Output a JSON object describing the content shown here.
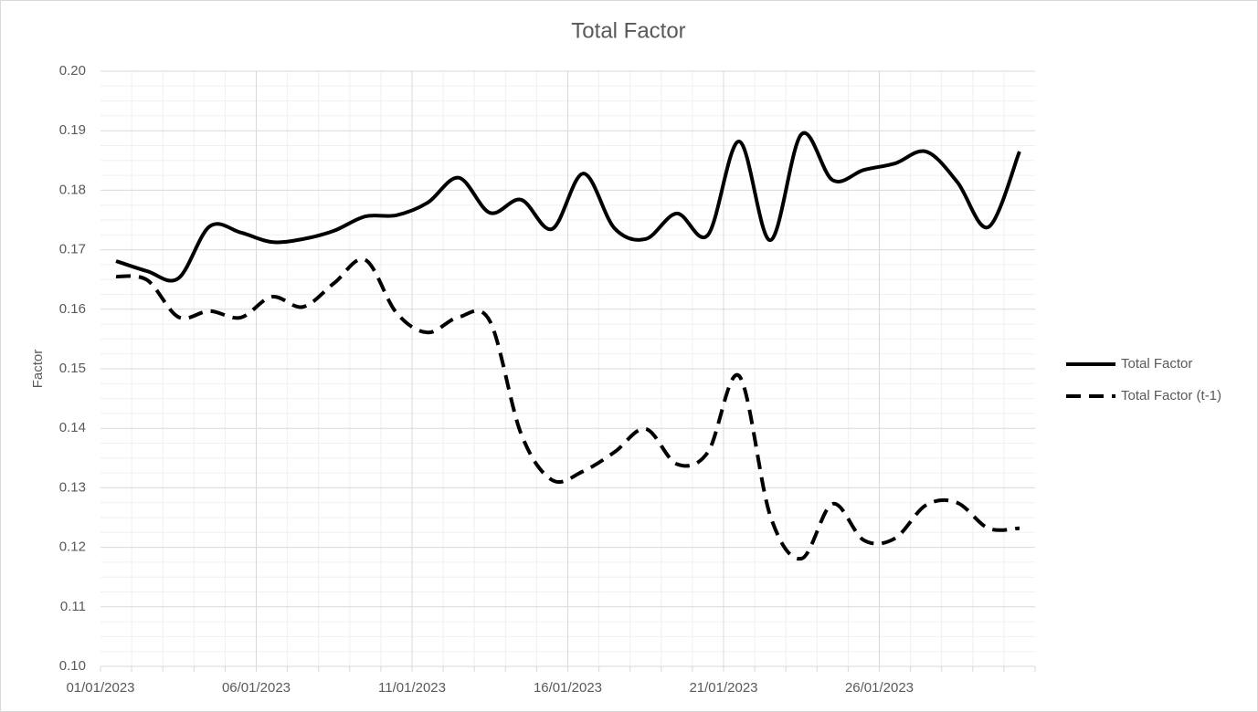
{
  "chart_data": {
    "type": "line",
    "title": "Total Factor",
    "y_label": "Factor",
    "categories": [
      "01/01/2023",
      null,
      null,
      null,
      null,
      "06/01/2023",
      null,
      null,
      null,
      null,
      "11/01/2023",
      null,
      null,
      null,
      null,
      "16/01/2023",
      null,
      null,
      null,
      null,
      "21/01/2023",
      null,
      null,
      null,
      null,
      "26/01/2023",
      null,
      null,
      null,
      null
    ],
    "series": [
      {
        "name": "Total Factor",
        "color": "#000000",
        "dash": false,
        "values": [
          0.1681,
          0.1664,
          0.1652,
          0.1739,
          0.1729,
          0.1713,
          0.1718,
          0.1732,
          0.1756,
          0.1758,
          0.1779,
          0.1821,
          0.1762,
          0.1784,
          0.1735,
          0.1828,
          0.1736,
          0.1718,
          0.1761,
          0.1725,
          0.1882,
          0.1716,
          0.1894,
          0.1817,
          0.1834,
          0.1845,
          0.1865,
          0.1814,
          0.1738,
          0.1865
        ]
      },
      {
        "name": "Total Factor (t-1)",
        "color": "#000000",
        "dash": true,
        "values": [
          0.1655,
          0.1649,
          0.1587,
          0.1597,
          0.1586,
          0.1621,
          0.1604,
          0.1644,
          0.1683,
          0.1594,
          0.1561,
          0.1587,
          0.158,
          0.1391,
          0.1313,
          0.1328,
          0.136,
          0.1399,
          0.134,
          0.136,
          0.1488,
          0.1253,
          0.1181,
          0.1273,
          0.1212,
          0.1215,
          0.1271,
          0.1275,
          0.1232,
          0.1232
        ]
      }
    ],
    "ylim": [
      0.1,
      0.2
    ],
    "yticks": [
      {
        "value": 0.1,
        "label": "0.10"
      },
      0.11,
      0.12,
      0.13,
      0.14,
      0.15,
      0.16,
      0.17,
      0.18,
      0.19,
      {
        "value": 0.2,
        "label": "0.20"
      }
    ],
    "grid": true,
    "legend": "right"
  }
}
